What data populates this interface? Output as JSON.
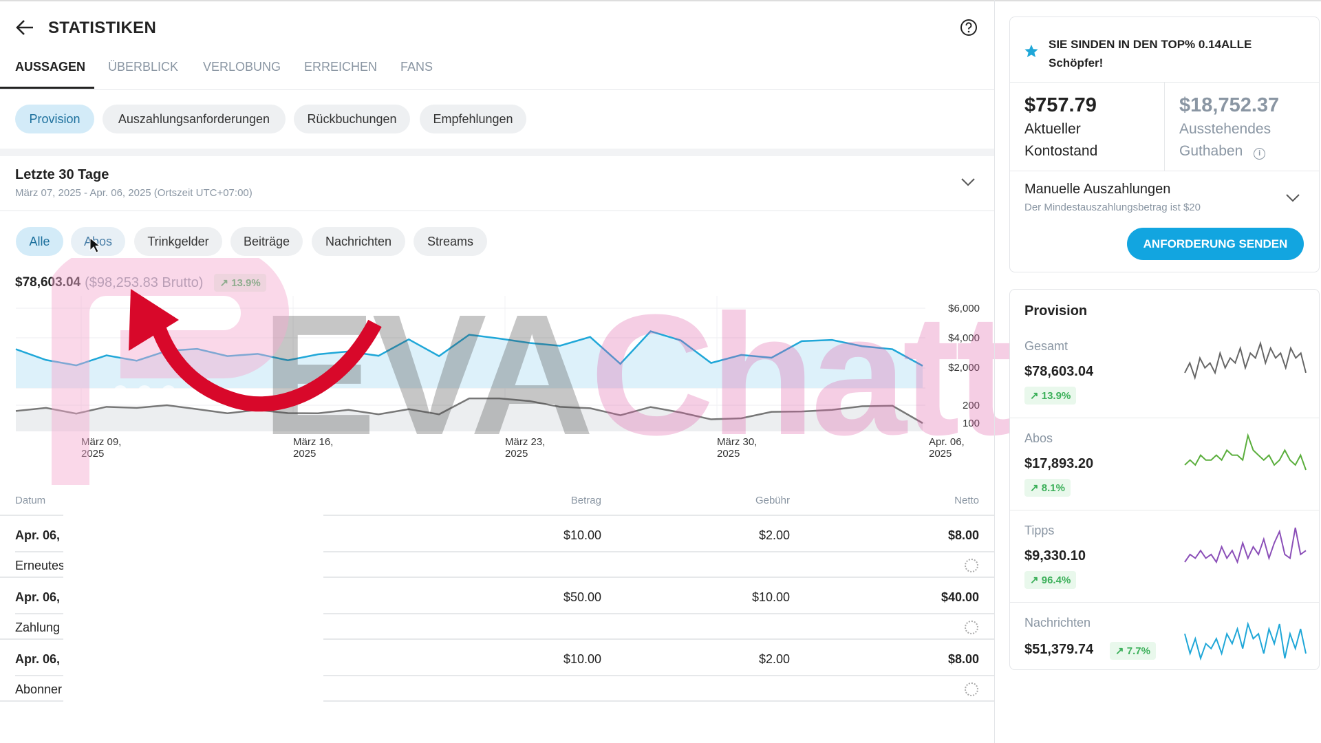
{
  "header": {
    "title": "STATISTIKEN",
    "back_icon": "arrow-left-icon",
    "help_icon": "question-circle-icon"
  },
  "tabs": [
    "AUSSAGEN",
    "ÜBERBLICK",
    "VERLOBUNG",
    "ERREICHEN",
    "FANS"
  ],
  "sub_tabs": [
    "Provision",
    "Auszahlungsanforderungen",
    "Rückbuchungen",
    "Empfehlungen"
  ],
  "period": {
    "title": "Letzte 30 Tage",
    "range": "März 07, 2025 - Apr. 06, 2025 (Ortszeit UTC+07:00)"
  },
  "filters": [
    "Alle",
    "Abos",
    "Trinkgelder",
    "Beiträge",
    "Nachrichten",
    "Streams"
  ],
  "summary": {
    "net": "$78,603.04",
    "gross": "($98,253.83 Brutto)",
    "change": "13.9%"
  },
  "chart_data": {
    "type": "line",
    "x_ticks": [
      [
        "März 09,",
        "2025"
      ],
      [
        "März 16,",
        "2025"
      ],
      [
        "März 23,",
        "2025"
      ],
      [
        "März 30,",
        "2025"
      ],
      [
        "Apr. 06,",
        "2025"
      ]
    ],
    "x_range": [
      "2025-03-07",
      "2025-04-06"
    ],
    "series": [
      {
        "color": "#1fa7d8",
        "axis": "upper",
        "y_ticks": [
          "$6,000",
          "$4,000",
          "$2,000"
        ],
        "ylim": [
          0,
          6000
        ],
        "values": [
          3260,
          2540,
          2180,
          2850,
          2490,
          3150,
          3280,
          2800,
          2950,
          2520,
          2920,
          3110,
          2820,
          3920,
          2800,
          4230,
          3970,
          3680,
          3490,
          4080,
          2280,
          4460,
          3850,
          2340,
          2880,
          2690,
          3800,
          3880,
          3460,
          3260,
          2150
        ]
      },
      {
        "color": "#777777",
        "axis": "lower",
        "y_ticks": [
          "200",
          "100"
        ],
        "ylim": [
          100,
          200
        ],
        "values": [
          168,
          185,
          153,
          191,
          185,
          200,
          178,
          155,
          174,
          156,
          155,
          174,
          149,
          178,
          149,
          238,
          238,
          223,
          191,
          183,
          144,
          190,
          159,
          121,
          127,
          163,
          165,
          174,
          194,
          197,
          100
        ]
      }
    ]
  },
  "table": {
    "headers": [
      "Datum",
      "Betrag",
      "Gebühr",
      "Netto"
    ],
    "rows": [
      {
        "date": "Apr. 06,",
        "desc": "Erneutes",
        "amount": "$10.00",
        "fee": "$2.00",
        "net": "$8.00"
      },
      {
        "date": "Apr. 06,",
        "desc": "Zahlung",
        "amount": "$50.00",
        "fee": "$10.00",
        "net": "$40.00"
      },
      {
        "date": "Apr. 06,",
        "desc": "Abonner",
        "amount": "$10.00",
        "fee": "$2.00",
        "net": "$8.00"
      }
    ]
  },
  "side": {
    "top_notice": [
      "SIE SINDEN IN DEN TOP% 0.14ALLE",
      "Schöpfer!"
    ],
    "current_balance": {
      "value": "$757.79",
      "label1": "Aktueller",
      "label2": "Kontostand"
    },
    "pending_balance": {
      "value": "$18,752.37",
      "label1": "Ausstehendes",
      "label2": "Guthaben"
    },
    "manual": {
      "title": "Manuelle Auszahlungen",
      "note": "Der Mindestauszahlungsbetrag ist $20"
    },
    "request_button": "ANFORDERUNG SENDEN",
    "provision": {
      "title": "Provision",
      "items": [
        {
          "label": "Gesamt",
          "value": "$78,603.04",
          "change": "13.9%",
          "color": "#666666",
          "spark": [
            5,
            7,
            4,
            8,
            6,
            7,
            5,
            9,
            6,
            8,
            7,
            10,
            6,
            9,
            8,
            11,
            7,
            10,
            8,
            9,
            6,
            10,
            8,
            9,
            5
          ]
        },
        {
          "label": "Abos",
          "value": "$17,893.20",
          "change": "8.1%",
          "color": "#5aae3c",
          "spark": [
            3,
            4,
            3,
            5,
            4,
            4,
            5,
            4,
            6,
            5,
            5,
            4,
            9,
            6,
            5,
            4,
            5,
            3,
            4,
            6,
            4,
            3,
            5,
            2
          ]
        },
        {
          "label": "Tipps",
          "value": "$9,330.10",
          "change": "96.4%",
          "color": "#8b4fb8",
          "spark": [
            2,
            4,
            3,
            5,
            3,
            4,
            2,
            6,
            3,
            5,
            2,
            7,
            3,
            6,
            4,
            8,
            3,
            7,
            10,
            4,
            3,
            11,
            4,
            5
          ]
        },
        {
          "label": "Nachrichten",
          "value": "$51,379.74",
          "change": "7.7%",
          "color": "#1fa7d8",
          "spark": [
            8,
            4,
            7,
            3,
            6,
            5,
            7,
            4,
            8,
            6,
            9,
            5,
            10,
            7,
            8,
            4,
            9,
            6,
            10,
            3,
            8,
            5,
            9,
            4
          ]
        }
      ]
    }
  },
  "watermark": "EVAChatting",
  "colors": {
    "accent": "#12a5e0",
    "positive": "#3cb05a"
  }
}
